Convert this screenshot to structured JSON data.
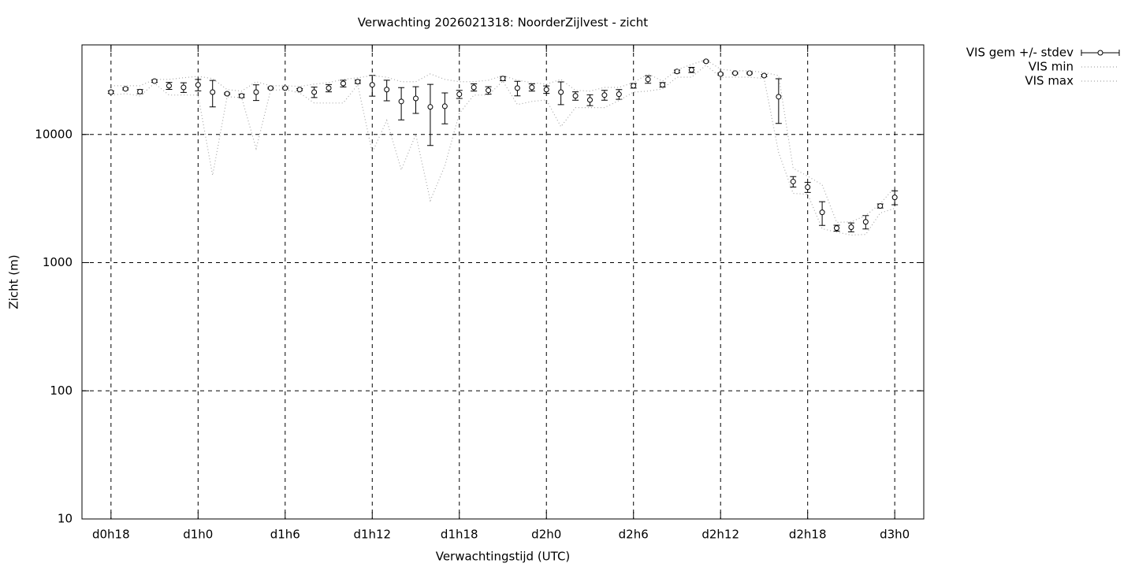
{
  "chart_data": {
    "type": "errorline",
    "title": "Verwachting 2026021318: NoorderZijlvest - zicht",
    "xlabel": "Verwachtingstijd (UTC)",
    "ylabel": "Zicht (m)",
    "log_y": true,
    "grid": true,
    "legend": "outside-top-right",
    "xlim": [
      16,
      74
    ],
    "xticks": [
      {
        "value": 18,
        "label": "d0h18"
      },
      {
        "value": 24,
        "label": "d1h0"
      },
      {
        "value": 30,
        "label": "d1h6"
      },
      {
        "value": 36,
        "label": "d1h12"
      },
      {
        "value": 42,
        "label": "d1h18"
      },
      {
        "value": 48,
        "label": "d2h0"
      },
      {
        "value": 54,
        "label": "d2h6"
      },
      {
        "value": 60,
        "label": "d2h12"
      },
      {
        "value": 66,
        "label": "d2h18"
      },
      {
        "value": 72,
        "label": "d3h0"
      }
    ],
    "ylim": [
      10,
      50000
    ],
    "yticks": [
      10,
      100,
      1000,
      10000
    ],
    "x": [
      18,
      19,
      20,
      21,
      22,
      23,
      24,
      25,
      26,
      27,
      28,
      29,
      30,
      31,
      32,
      33,
      34,
      35,
      36,
      37,
      38,
      39,
      40,
      41,
      42,
      43,
      44,
      45,
      46,
      47,
      48,
      49,
      50,
      51,
      52,
      53,
      54,
      55,
      56,
      57,
      58,
      59,
      60,
      61,
      62,
      63,
      64,
      65,
      66,
      67,
      68,
      69,
      70,
      71,
      72
    ],
    "series": [
      {
        "name": "VIS gem +/- stdev",
        "color": "#000000",
        "values": [
          21400,
          22700,
          21600,
          26100,
          24000,
          23300,
          24400,
          21400,
          20800,
          20000,
          21400,
          23000,
          23000,
          22400,
          21400,
          23000,
          25000,
          25800,
          24400,
          22400,
          18100,
          19100,
          16400,
          16600,
          20600,
          23300,
          22100,
          27300,
          23000,
          23300,
          22400,
          21400,
          20000,
          18600,
          20300,
          20600,
          24000,
          26900,
          24400,
          31000,
          31900,
          37200,
          29600,
          30100,
          30100,
          28800,
          19700,
          4290,
          3880,
          2470,
          1860,
          1890,
          2080,
          2770,
          3230
        ],
        "errors": [
          500,
          400,
          800,
          600,
          1500,
          2000,
          2500,
          5000,
          300,
          600,
          3000,
          300,
          300,
          400,
          2000,
          1500,
          1500,
          800,
          4500,
          4100,
          5100,
          4500,
          8200,
          4500,
          1500,
          1500,
          1500,
          1000,
          3000,
          1500,
          1500,
          4300,
          1500,
          1800,
          1800,
          1800,
          1000,
          1800,
          1000,
          800,
          1500,
          500,
          500,
          400,
          400,
          500,
          7500,
          400,
          350,
          520,
          100,
          150,
          250,
          100,
          400
        ]
      },
      {
        "name": "VIS min",
        "color": "#a8a8a8",
        "values": [
          20300,
          20800,
          20000,
          25100,
          20300,
          20300,
          20300,
          4800,
          19700,
          19400,
          7760,
          22100,
          22400,
          21100,
          17600,
          17600,
          17600,
          24400,
          7230,
          12900,
          5300,
          10000,
          3050,
          5690,
          14600,
          20300,
          20300,
          26100,
          17100,
          18100,
          18600,
          11500,
          16200,
          16200,
          16200,
          18400,
          21400,
          21800,
          22700,
          28000,
          28000,
          34700,
          28000,
          28000,
          28000,
          27300,
          7230,
          3470,
          3420,
          1840,
          1730,
          1640,
          1660,
          2440,
          2650
        ]
      },
      {
        "name": "VIS max",
        "color": "#a8a8a8",
        "values": [
          24000,
          24000,
          24000,
          26900,
          26900,
          27700,
          28400,
          27300,
          22400,
          21800,
          25800,
          24000,
          24000,
          23700,
          24700,
          25400,
          26900,
          27700,
          28800,
          28000,
          25800,
          25800,
          29700,
          26900,
          25800,
          25800,
          26500,
          28800,
          26500,
          25400,
          24700,
          26900,
          22100,
          21800,
          23300,
          23300,
          25400,
          29700,
          26100,
          31900,
          35200,
          38300,
          32300,
          31400,
          31400,
          30500,
          28800,
          5450,
          4730,
          4050,
          2060,
          2080,
          2330,
          2880,
          3880
        ]
      }
    ]
  }
}
